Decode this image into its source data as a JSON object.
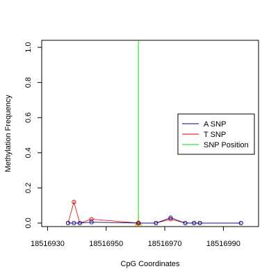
{
  "chart_data": {
    "type": "line",
    "xlabel": "CpG Coordinates",
    "ylabel": "Methylation Frequency",
    "xlim": [
      18516928,
      18517002
    ],
    "ylim": [
      -0.02,
      1.04
    ],
    "xticks": [
      18516930,
      18516950,
      18516970,
      18516990
    ],
    "yticks": [
      0.0,
      0.2,
      0.4,
      0.6,
      0.8,
      1.0
    ],
    "x_tick_labels": [
      "18516930",
      "18516950",
      "18516970",
      "18516990"
    ],
    "y_tick_labels": [
      "0.0",
      "0.2",
      "0.4",
      "0.6",
      "0.8",
      "1.0"
    ],
    "series": [
      {
        "name": "A SNP",
        "color": "#00008b",
        "x": [
          18516937,
          18516939,
          18516941,
          18516945,
          18516961,
          18516967,
          18516972,
          18516977,
          18516980,
          18516982,
          18516996
        ],
        "y": [
          0.0,
          0.0,
          0.0,
          0.005,
          0.0,
          0.0,
          0.03,
          0.0,
          0.0,
          0.0,
          0.0
        ]
      },
      {
        "name": "T SNP",
        "color": "#e00000",
        "x": [
          18516937,
          18516939,
          18516941,
          18516945,
          18516961,
          18516967,
          18516972,
          18516977,
          18516980,
          18516982,
          18516996
        ],
        "y": [
          0.0,
          0.12,
          0.0,
          0.022,
          0.0,
          0.0,
          0.022,
          0.0,
          0.0,
          0.0,
          0.0
        ]
      }
    ],
    "snp_position": {
      "name": "SNP Position",
      "x": 18516961,
      "color": "#00dd00",
      "marker_color": "#f5a000"
    },
    "legend": {
      "placement": "right",
      "entries": [
        {
          "label": "A SNP",
          "color": "#00008b"
        },
        {
          "label": "T SNP",
          "color": "#e00000"
        },
        {
          "label": "SNP Position",
          "color": "#00dd00"
        }
      ]
    },
    "grid": false
  }
}
